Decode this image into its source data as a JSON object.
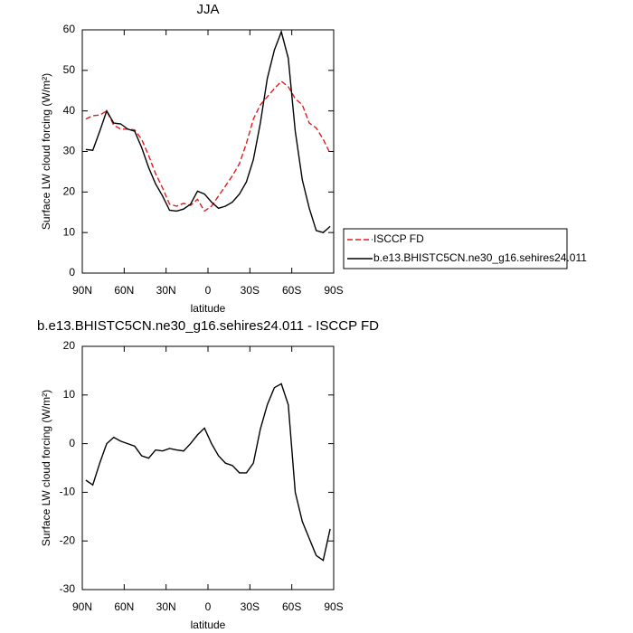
{
  "chart_data": [
    {
      "type": "line",
      "title": "JJA",
      "xlabel": "latitude",
      "ylabel": "Surface LW cloud forcing (W/m²)",
      "x": [
        87.5,
        82.5,
        77.5,
        72.5,
        67.5,
        62.5,
        57.5,
        52.5,
        47.5,
        42.5,
        37.5,
        32.5,
        27.5,
        22.5,
        17.5,
        12.5,
        7.5,
        2.5,
        -2.5,
        -7.5,
        -12.5,
        -17.5,
        -22.5,
        -27.5,
        -32.5,
        -37.5,
        -42.5,
        -47.5,
        -52.5,
        -57.5,
        -62.5,
        -67.5,
        -72.5,
        -77.5,
        -82.5,
        -87.5
      ],
      "series": [
        {
          "name": "ISCCP FD",
          "color": "#e41a1c",
          "dashed": true,
          "values": [
            38,
            38.8,
            39,
            40,
            36.5,
            35.5,
            35.5,
            35.3,
            33,
            29,
            24.5,
            21,
            17,
            16.5,
            17.2,
            16.7,
            18.2,
            15.3,
            16.5,
            19,
            21.5,
            24,
            27,
            32,
            38,
            41.5,
            43.5,
            45.5,
            47.3,
            46,
            43,
            41.5,
            37,
            35.8,
            33,
            29.5
          ]
        },
        {
          "name": "b.e13.BHISTC5CN.ne30_g16.sehires24.011",
          "color": "#000000",
          "dashed": false,
          "values": [
            30.5,
            30.3,
            35,
            40,
            37,
            36.8,
            35.5,
            35,
            31,
            26,
            22,
            19,
            15.5,
            15.3,
            15.8,
            17,
            20.2,
            19.5,
            17.5,
            16,
            16.5,
            17.5,
            19.5,
            22.5,
            28,
            37,
            48,
            55,
            59.5,
            53,
            35,
            23,
            16,
            10.5,
            10,
            11.5
          ]
        }
      ],
      "xlim": [
        90,
        -90
      ],
      "xticks": [
        {
          "value": 90,
          "label": "90N"
        },
        {
          "value": 60,
          "label": "60N"
        },
        {
          "value": 30,
          "label": "30N"
        },
        0,
        {
          "value": -30,
          "label": "30S"
        },
        {
          "value": -60,
          "label": "60S"
        },
        {
          "value": -90,
          "label": "90S"
        }
      ],
      "ylim": [
        0,
        60
      ],
      "yticks": [
        0,
        10,
        20,
        30,
        40,
        50,
        60
      ],
      "legend": "right"
    },
    {
      "type": "line",
      "title": "b.e13.BHISTC5CN.ne30_g16.sehires24.011 - ISCCP FD",
      "xlabel": "latitude",
      "ylabel": "Surface LW cloud forcing (W/m²)",
      "x": [
        87.5,
        82.5,
        77.5,
        72.5,
        67.5,
        62.5,
        57.5,
        52.5,
        47.5,
        42.5,
        37.5,
        32.5,
        27.5,
        22.5,
        17.5,
        12.5,
        7.5,
        2.5,
        -2.5,
        -7.5,
        -12.5,
        -17.5,
        -22.5,
        -27.5,
        -32.5,
        -37.5,
        -42.5,
        -47.5,
        -52.5,
        -57.5,
        -62.5,
        -67.5,
        -72.5,
        -77.5,
        -82.5,
        -87.5
      ],
      "series": [
        {
          "color": "#000000",
          "dashed": false,
          "values": [
            -7.5,
            -8.5,
            -4,
            0,
            1.3,
            0.5,
            0,
            -0.5,
            -2.5,
            -3,
            -1.3,
            -1.5,
            -1,
            -1.3,
            -1.5,
            0,
            1.8,
            3.2,
            0,
            -2.5,
            -4,
            -4.5,
            -6,
            -6,
            -4,
            3,
            8,
            11.5,
            12.3,
            8,
            -10,
            -16,
            -19.5,
            -23,
            -24,
            -17.5
          ]
        }
      ],
      "xlim": [
        90,
        -90
      ],
      "xticks": [
        {
          "value": 90,
          "label": "90N"
        },
        {
          "value": 60,
          "label": "60N"
        },
        {
          "value": 30,
          "label": "30N"
        },
        0,
        {
          "value": -30,
          "label": "30S"
        },
        {
          "value": -60,
          "label": "60S"
        },
        {
          "value": -90,
          "label": "90S"
        }
      ],
      "ylim": [
        -30,
        20
      ],
      "yticks": [
        -30,
        -20,
        -10,
        0,
        10,
        20
      ]
    }
  ]
}
